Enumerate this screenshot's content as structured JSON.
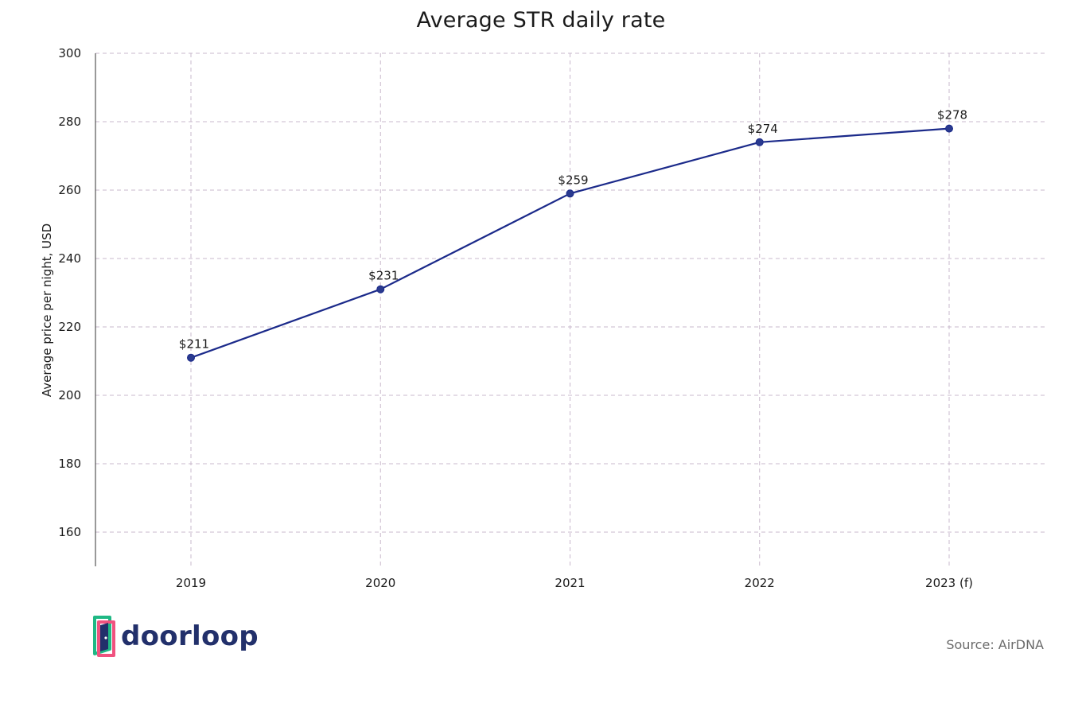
{
  "chart_data": {
    "type": "line",
    "title": "Average STR daily rate",
    "xlabel": "",
    "ylabel": "Average price per night, USD",
    "categories": [
      "2019",
      "2020",
      "2021",
      "2022",
      "2023 (f)"
    ],
    "series": [
      {
        "values": [
          211,
          231,
          259,
          274,
          278
        ],
        "data_labels": [
          "$211",
          "$231",
          "$259",
          "$274",
          "$278"
        ]
      }
    ],
    "ylim": [
      150,
      300
    ],
    "yticks": [
      160,
      180,
      200,
      220,
      240,
      260,
      280,
      300
    ],
    "grid": true,
    "line_color": "#1b2a8a",
    "grid_color": "#c9b8cc"
  },
  "footer": {
    "logo_text": "doorloop",
    "source": "Source: AirDNA"
  }
}
